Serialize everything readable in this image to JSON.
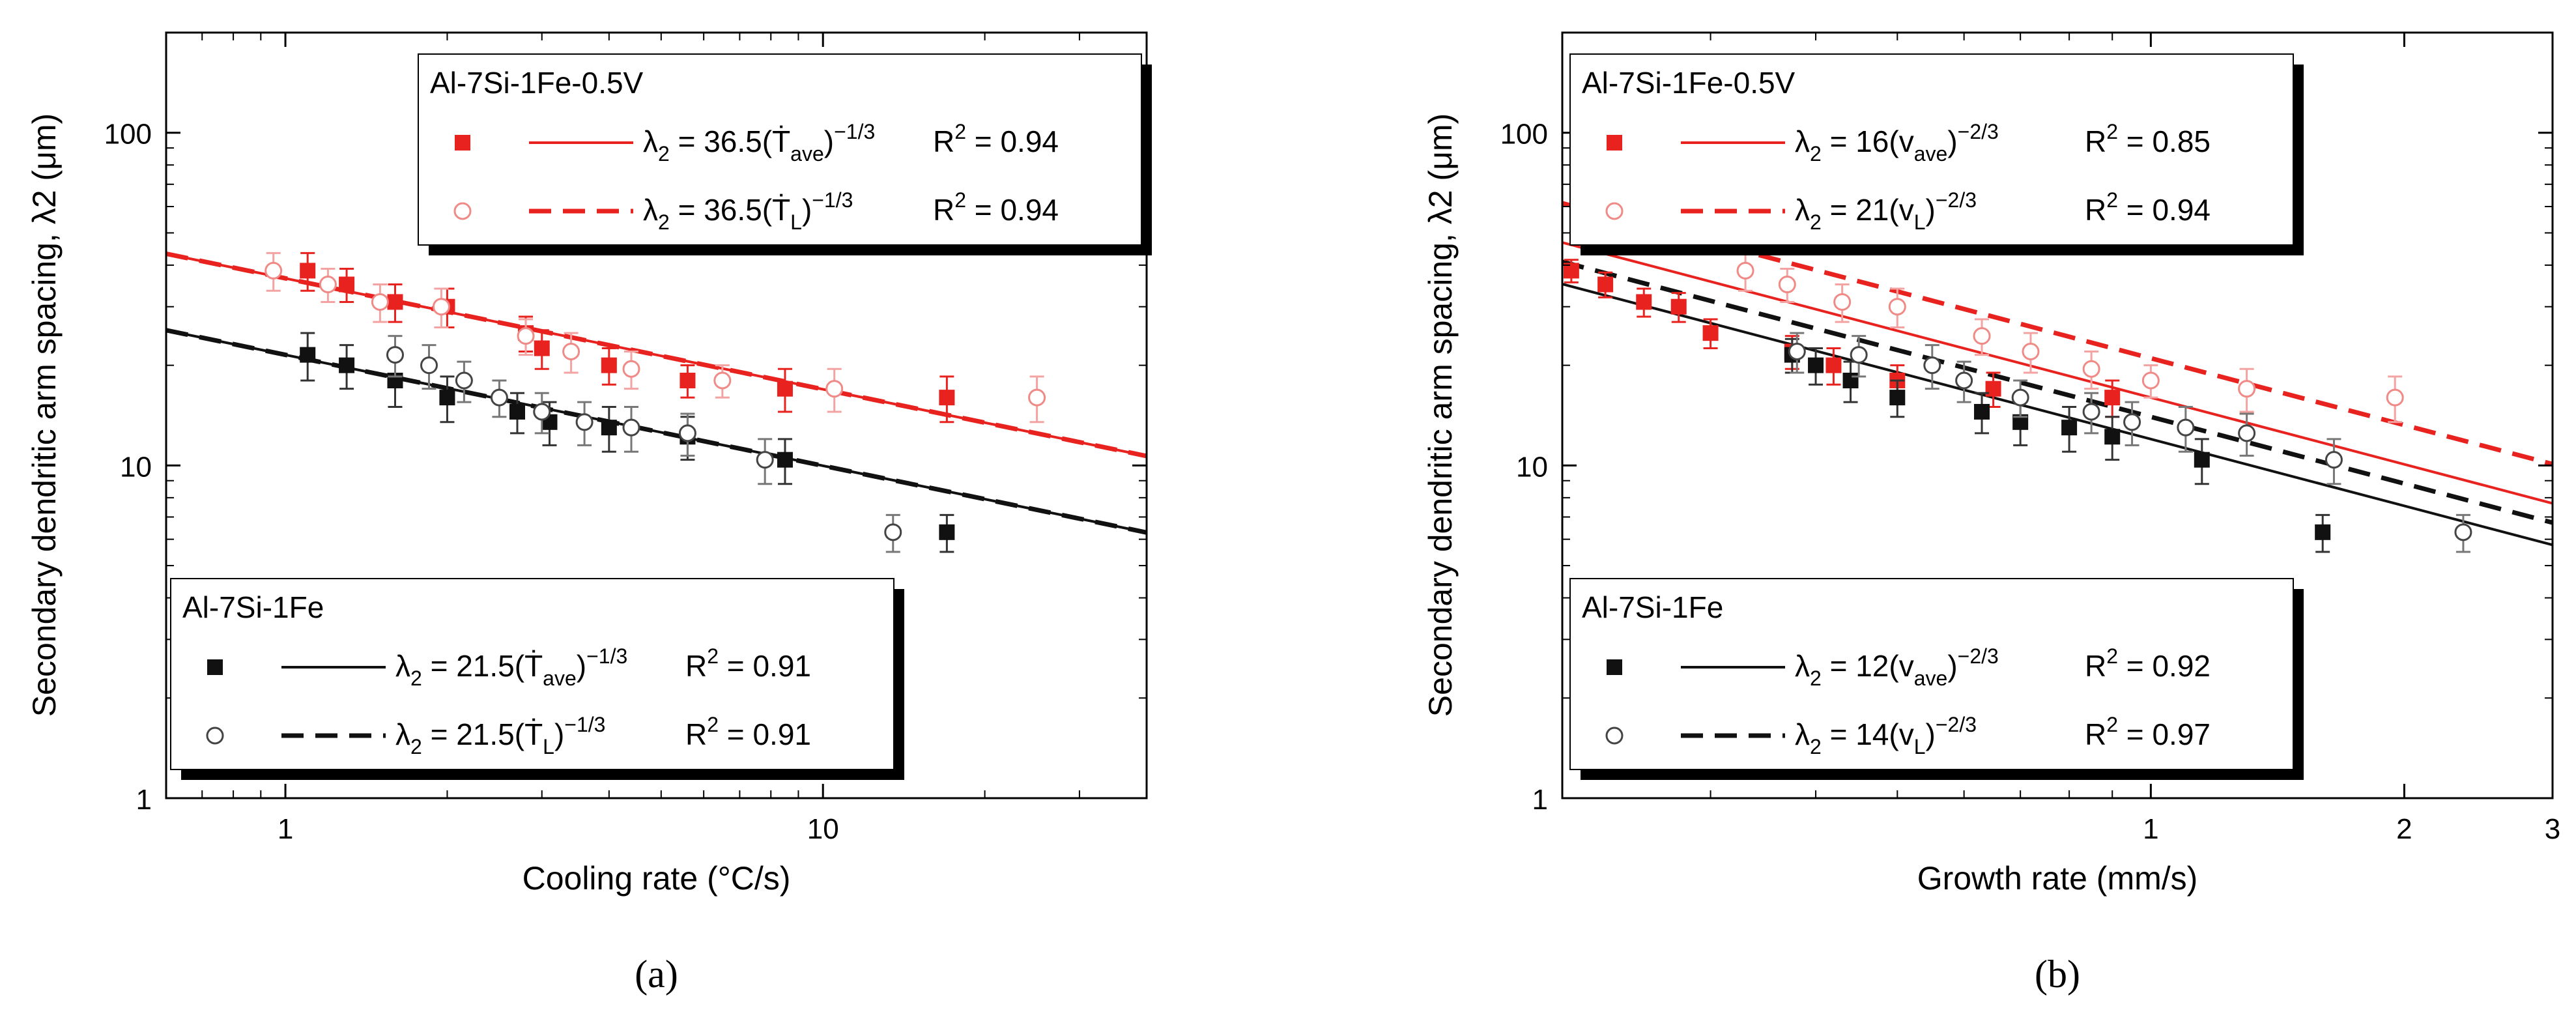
{
  "figure": {
    "panel_labels": [
      "(a)",
      "(b)"
    ]
  },
  "chart_data": [
    {
      "type": "scatter",
      "panel": "(a)",
      "xlabel": "Cooling rate (°C/s)",
      "ylabel": "Secondary dendritic arm spacing, λ2 (μm)",
      "xscale": "log",
      "yscale": "log",
      "xlim": [
        0.6,
        40
      ],
      "ylim": [
        1,
        200
      ],
      "x_ticks": [
        {
          "v": 1,
          "label": "1"
        },
        {
          "v": 10,
          "label": "10"
        }
      ],
      "y_ticks": [
        {
          "v": 1,
          "label": "1"
        },
        {
          "v": 10,
          "label": "10"
        },
        {
          "v": 100,
          "label": "100"
        }
      ],
      "colors": {
        "red": "#e8231f",
        "black": "#111111"
      },
      "series": [
        {
          "name": "Al-7Si-1Fe-0.5V ave",
          "color": "red",
          "marker": "square-filled",
          "points": [
            [
              1.1,
              38.5
            ],
            [
              1.3,
              35
            ],
            [
              1.6,
              31
            ],
            [
              2.0,
              30
            ],
            [
              2.8,
              25
            ],
            [
              3.0,
              22.5
            ],
            [
              4.0,
              20
            ],
            [
              5.6,
              18
            ],
            [
              8.5,
              17
            ],
            [
              17,
              16
            ]
          ],
          "err": [
            5,
            4,
            4,
            4,
            3,
            3,
            2.5,
            2,
            2.5,
            2.5
          ]
        },
        {
          "name": "Al-7Si-1Fe-0.5V L",
          "color": "red",
          "marker": "circle-open",
          "points": [
            [
              0.95,
              38.5
            ],
            [
              1.2,
              35
            ],
            [
              1.5,
              31
            ],
            [
              1.95,
              30
            ],
            [
              2.8,
              24.5
            ],
            [
              3.4,
              22
            ],
            [
              4.4,
              19.5
            ],
            [
              6.5,
              18
            ],
            [
              10.5,
              17
            ],
            [
              25,
              16
            ]
          ],
          "err": [
            5,
            4,
            4,
            4,
            3,
            3,
            2.5,
            2,
            2.5,
            2.5
          ]
        },
        {
          "name": "Al-7Si-1Fe ave",
          "color": "black",
          "marker": "square-filled",
          "points": [
            [
              1.1,
              21.5
            ],
            [
              1.3,
              20
            ],
            [
              1.6,
              18
            ],
            [
              2.0,
              16
            ],
            [
              2.7,
              14.5
            ],
            [
              3.1,
              13.5
            ],
            [
              4.0,
              13
            ],
            [
              5.6,
              12.2
            ],
            [
              8.5,
              10.4
            ],
            [
              17,
              6.3
            ]
          ],
          "err": [
            3.5,
            3,
            3,
            2.5,
            2,
            2,
            2,
            1.8,
            1.6,
            0.8
          ]
        },
        {
          "name": "Al-7Si-1Fe L",
          "color": "black",
          "marker": "circle-open",
          "points": [
            [
              1.6,
              21.5
            ],
            [
              1.85,
              20
            ],
            [
              2.15,
              18
            ],
            [
              2.5,
              16
            ],
            [
              3.0,
              14.5
            ],
            [
              3.6,
              13.5
            ],
            [
              4.4,
              13
            ],
            [
              5.6,
              12.5
            ],
            [
              7.8,
              10.4
            ],
            [
              13.5,
              6.3
            ]
          ],
          "err": [
            3,
            3,
            2.5,
            2,
            2,
            2,
            2,
            1.8,
            1.6,
            0.8
          ]
        }
      ],
      "fits": [
        {
          "name": "Al-7Si-1Fe-0.5V ave fit",
          "color": "red",
          "dash": false,
          "coef": 36.5,
          "exp": -0.3333
        },
        {
          "name": "Al-7Si-1Fe-0.5V L fit",
          "color": "red",
          "dash": true,
          "coef": 36.5,
          "exp": -0.3333
        },
        {
          "name": "Al-7Si-1Fe ave fit",
          "color": "black",
          "dash": false,
          "coef": 21.5,
          "exp": -0.3333
        },
        {
          "name": "Al-7Si-1Fe L fit",
          "color": "black",
          "dash": true,
          "coef": 21.5,
          "exp": -0.3333
        }
      ],
      "legends": [
        {
          "position": "top-right",
          "title": "Al-7Si-1Fe-0.5V",
          "rows": [
            {
              "marker": "square-filled",
              "color": "red",
              "dash": false,
              "pre": "λ",
              "sub1": "2",
              "mid": " = 36.5(Ṫ",
              "sub2": "ave",
              "close": ")",
              "sup": "−1/3",
              "r2": "R",
              "r2sup": "2",
              "r2val": " = 0.94"
            },
            {
              "marker": "circle-open",
              "color": "red",
              "dash": true,
              "pre": "λ",
              "sub1": "2",
              "mid": " = 36.5(Ṫ",
              "sub2": "L",
              "close": ")",
              "sup": "−1/3",
              "r2": "R",
              "r2sup": "2",
              "r2val": " = 0.94"
            }
          ]
        },
        {
          "position": "bottom-left",
          "title": "Al-7Si-1Fe",
          "rows": [
            {
              "marker": "square-filled",
              "color": "black",
              "dash": false,
              "pre": "λ",
              "sub1": "2",
              "mid": " = 21.5(Ṫ",
              "sub2": "ave",
              "close": ")",
              "sup": "−1/3",
              "r2": "R",
              "r2sup": "2",
              "r2val": " = 0.91"
            },
            {
              "marker": "circle-open",
              "color": "black",
              "dash": true,
              "pre": "λ",
              "sub1": "2",
              "mid": " = 21.5(Ṫ",
              "sub2": "L",
              "close": ")",
              "sup": "−1/3",
              "r2": "R",
              "r2sup": "2",
              "r2val": " = 0.91"
            }
          ]
        }
      ]
    },
    {
      "type": "scatter",
      "panel": "(b)",
      "xlabel": "Growth rate (mm/s)",
      "ylabel": "Secondary dendritic arm spacing, λ2 (μm)",
      "xscale": "log",
      "yscale": "log",
      "xlim": [
        0.2,
        3
      ],
      "ylim": [
        1,
        200
      ],
      "x_ticks": [
        {
          "v": 1,
          "label": "1"
        },
        {
          "v": 2,
          "label": "2"
        },
        {
          "v": 3,
          "label": "3"
        }
      ],
      "y_ticks": [
        {
          "v": 1,
          "label": "1"
        },
        {
          "v": 10,
          "label": "10"
        },
        {
          "v": 100,
          "label": "100"
        }
      ],
      "colors": {
        "red": "#e8231f",
        "black": "#111111"
      },
      "series": [
        {
          "name": "Al-7Si-1Fe-0.5V ave",
          "color": "red",
          "marker": "square-filled",
          "points": [
            [
              0.205,
              38.5
            ],
            [
              0.225,
              35
            ],
            [
              0.25,
              31
            ],
            [
              0.275,
              30
            ],
            [
              0.3,
              25
            ],
            [
              0.375,
              22
            ],
            [
              0.42,
              20
            ],
            [
              0.5,
              18
            ],
            [
              0.65,
              17
            ],
            [
              0.9,
              16
            ]
          ],
          "err": [
            3,
            3,
            3,
            3,
            2.5,
            2.5,
            2.5,
            2,
            2,
            2
          ]
        },
        {
          "name": "Al-7Si-1Fe-0.5V L",
          "color": "red",
          "marker": "circle-open",
          "points": [
            [
              0.33,
              38.5
            ],
            [
              0.37,
              35
            ],
            [
              0.43,
              31
            ],
            [
              0.5,
              30
            ],
            [
              0.63,
              24.5
            ],
            [
              0.72,
              22
            ],
            [
              0.85,
              19.5
            ],
            [
              1.0,
              18
            ],
            [
              1.3,
              17
            ],
            [
              1.95,
              16
            ]
          ],
          "err": [
            5,
            4,
            4,
            4,
            3,
            3,
            2.5,
            2,
            2.5,
            2.5
          ]
        },
        {
          "name": "Al-7Si-1Fe ave",
          "color": "black",
          "marker": "square-filled",
          "points": [
            [
              0.375,
              21.5
            ],
            [
              0.4,
              20
            ],
            [
              0.44,
              18
            ],
            [
              0.5,
              16
            ],
            [
              0.63,
              14.5
            ],
            [
              0.7,
              13.5
            ],
            [
              0.8,
              13
            ],
            [
              0.9,
              12.2
            ],
            [
              1.15,
              10.4
            ],
            [
              1.6,
              6.3
            ]
          ],
          "err": [
            2.5,
            2.5,
            2.5,
            2,
            2,
            2,
            2,
            1.8,
            1.6,
            0.8
          ]
        },
        {
          "name": "Al-7Si-1Fe L",
          "color": "black",
          "marker": "circle-open",
          "points": [
            [
              0.38,
              22
            ],
            [
              0.45,
              21.5
            ],
            [
              0.55,
              20
            ],
            [
              0.6,
              18
            ],
            [
              0.7,
              16
            ],
            [
              0.85,
              14.5
            ],
            [
              0.95,
              13.5
            ],
            [
              1.1,
              13
            ],
            [
              1.3,
              12.5
            ],
            [
              1.65,
              10.4
            ],
            [
              2.35,
              6.3
            ]
          ],
          "err": [
            3,
            3,
            3,
            2.5,
            2,
            2,
            2,
            2,
            1.8,
            1.6,
            0.8
          ]
        }
      ],
      "fits": [
        {
          "name": "Al-7Si-1Fe-0.5V ave fit",
          "color": "red",
          "dash": false,
          "coef": 16,
          "exp": -0.6667
        },
        {
          "name": "Al-7Si-1Fe-0.5V L fit",
          "color": "red",
          "dash": true,
          "coef": 21,
          "exp": -0.6667
        },
        {
          "name": "Al-7Si-1Fe ave fit",
          "color": "black",
          "dash": false,
          "coef": 12,
          "exp": -0.6667
        },
        {
          "name": "Al-7Si-1Fe L fit",
          "color": "black",
          "dash": true,
          "coef": 14,
          "exp": -0.6667
        }
      ],
      "legends": [
        {
          "position": "top-right",
          "title": "Al-7Si-1Fe-0.5V",
          "rows": [
            {
              "marker": "square-filled",
              "color": "red",
              "dash": false,
              "pre": "λ",
              "sub1": "2",
              "mid": " = 16(v",
              "sub2": "ave",
              "close": ")",
              "sup": "−2/3",
              "r2": "R",
              "r2sup": "2",
              "r2val": " = 0.85"
            },
            {
              "marker": "circle-open",
              "color": "red",
              "dash": true,
              "pre": "λ",
              "sub1": "2",
              "mid": " = 21(v",
              "sub2": "L",
              "close": ")",
              "sup": "−2/3",
              "r2": "R",
              "r2sup": "2",
              "r2val": " = 0.94"
            }
          ]
        },
        {
          "position": "bottom-left",
          "title": "Al-7Si-1Fe",
          "rows": [
            {
              "marker": "square-filled",
              "color": "black",
              "dash": false,
              "pre": "λ",
              "sub1": "2",
              "mid": " = 12(v",
              "sub2": "ave",
              "close": ")",
              "sup": "−2/3",
              "r2": "R",
              "r2sup": "2",
              "r2val": " = 0.92"
            },
            {
              "marker": "circle-open",
              "color": "black",
              "dash": true,
              "pre": "λ",
              "sub1": "2",
              "mid": " = 14(v",
              "sub2": "L",
              "close": ")",
              "sup": "−2/3",
              "r2": "R",
              "r2sup": "2",
              "r2val": " = 0.97"
            }
          ]
        }
      ]
    }
  ]
}
